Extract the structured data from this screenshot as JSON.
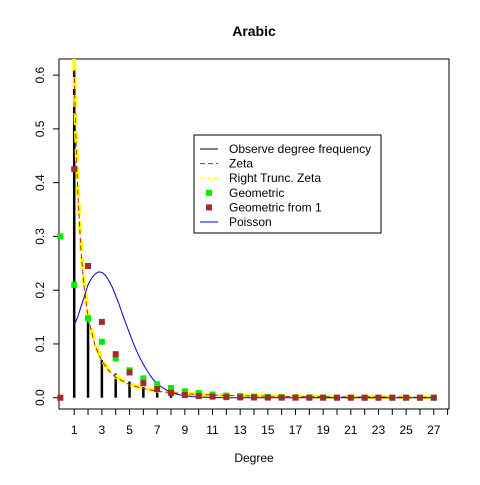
{
  "chart_data": {
    "type": "line",
    "title": "Arabic",
    "xlabel": "Degree",
    "ylabel": "",
    "xlim": [
      -0.1,
      28.1
    ],
    "ylim": [
      -0.021,
      0.63
    ],
    "x_ticks": [
      1,
      2,
      3,
      4,
      5,
      6,
      7,
      8,
      9,
      10,
      11,
      12,
      13,
      14,
      15,
      16,
      17,
      18,
      19,
      20,
      21,
      22,
      23,
      24,
      25,
      26,
      27,
      28
    ],
    "x_tick_labels": [
      "1",
      "",
      "3",
      "",
      "5",
      "",
      "7",
      "",
      "9",
      "",
      "11",
      "",
      "13",
      "",
      "15",
      "",
      "17",
      "",
      "19",
      "",
      "21",
      "",
      "23",
      "",
      "25",
      "",
      "27",
      ""
    ],
    "y_ticks": [
      0.0,
      0.1,
      0.2,
      0.3,
      0.4,
      0.5,
      0.6
    ],
    "y_tick_labels": [
      "0.0",
      "0.1",
      "0.2",
      "0.3",
      "0.4",
      "0.5",
      "0.6"
    ],
    "legend_position": "top-right",
    "series": [
      {
        "name": "Observe degree frequency",
        "style": "spikes",
        "color": "#000000",
        "x": [
          1,
          2,
          3,
          4,
          5,
          6,
          7,
          8,
          9,
          10,
          11,
          12,
          13,
          14,
          15,
          16,
          17,
          18,
          19,
          20,
          21,
          22,
          23,
          24,
          25,
          26,
          27
        ],
        "values": [
          0.61,
          0.15,
          0.07,
          0.045,
          0.03,
          0.02,
          0.015,
          0.011,
          0.008,
          0.006,
          0.005,
          0.004,
          0.003,
          0.002,
          0.002,
          0.0015,
          0.001,
          0.001,
          0.001,
          0.001,
          0.001,
          0.001,
          0.001,
          0.001,
          0.001,
          0.001,
          0.001
        ]
      },
      {
        "name": "Zeta",
        "style": "dashed",
        "color": "#b22222",
        "x": [
          1,
          1.1,
          1.2,
          1.3,
          1.5,
          1.7,
          2,
          2.5,
          3,
          3.5,
          4,
          5,
          6,
          7,
          8,
          9,
          10,
          12,
          14,
          17,
          20,
          24,
          27
        ],
        "values": [
          0.61,
          0.5,
          0.42,
          0.36,
          0.27,
          0.21,
          0.15,
          0.097,
          0.068,
          0.05,
          0.038,
          0.024,
          0.017,
          0.012,
          0.0094,
          0.0075,
          0.006,
          0.0042,
          0.0031,
          0.0021,
          0.0015,
          0.0011,
          0.0008
        ]
      },
      {
        "name": "Right Trunc. Zeta",
        "style": "dashed",
        "color": "#ffff00",
        "x": [
          1,
          1.1,
          1.2,
          1.3,
          1.5,
          1.7,
          2,
          2.5,
          3,
          3.5,
          4,
          5,
          6,
          7,
          8,
          9,
          10,
          12,
          14,
          17,
          20,
          24,
          27
        ],
        "values": [
          0.63,
          0.52,
          0.44,
          0.37,
          0.28,
          0.22,
          0.155,
          0.1,
          0.07,
          0.052,
          0.039,
          0.025,
          0.017,
          0.013,
          0.0097,
          0.0077,
          0.0062,
          0.0043,
          0.0032,
          0.0022,
          0.0016,
          0.0011,
          0.0009
        ]
      },
      {
        "name": "Geometric",
        "style": "points",
        "color": "#00ee00",
        "x": [
          0,
          1,
          2,
          3,
          4,
          5,
          6,
          7,
          8,
          9,
          10,
          11,
          12,
          13,
          14,
          15,
          16,
          17,
          18,
          19,
          20,
          21,
          22,
          23,
          24,
          25,
          26,
          27
        ],
        "values": [
          0.3,
          0.21,
          0.148,
          0.104,
          0.073,
          0.051,
          0.036,
          0.025,
          0.018,
          0.012,
          0.009,
          0.006,
          0.004,
          0.003,
          0.002,
          0.0015,
          0.001,
          0.0007,
          0.0005,
          0.0003,
          0.0002,
          0.0002,
          0.0001,
          0.0001,
          0.0001,
          0.0,
          0.0,
          0.0
        ]
      },
      {
        "name": "Geometric from 1",
        "style": "points",
        "color": "#a52a2a",
        "x": [
          0,
          1,
          2,
          3,
          4,
          5,
          6,
          7,
          8,
          9,
          10,
          11,
          12,
          13,
          14,
          15,
          16,
          17,
          18,
          19,
          20,
          21,
          22,
          23,
          24,
          25,
          26,
          27
        ],
        "values": [
          0.0,
          0.425,
          0.245,
          0.141,
          0.081,
          0.047,
          0.027,
          0.016,
          0.009,
          0.005,
          0.003,
          0.002,
          0.001,
          0.0006,
          0.0004,
          0.0002,
          0.0001,
          0.0001,
          0.0,
          0.0,
          0.0,
          0.0,
          0.0,
          0.0,
          0.0,
          0.0,
          0.0,
          0.0
        ]
      },
      {
        "name": "Poisson",
        "style": "solid",
        "color": "#0000cd",
        "x": [
          1,
          1.25,
          1.5,
          1.75,
          2,
          2.25,
          2.5,
          2.75,
          3,
          3.25,
          3.5,
          3.75,
          4,
          4.25,
          4.5,
          4.75,
          5,
          5.25,
          5.5,
          5.75,
          6,
          6.25,
          6.5,
          6.75,
          7,
          7.25,
          7.5,
          7.75,
          8,
          8.5,
          9,
          9.5,
          10,
          10.5,
          11,
          12,
          13,
          14,
          15,
          17,
          20,
          24,
          27
        ],
        "values": [
          0.135,
          0.15,
          0.17,
          0.19,
          0.21,
          0.222,
          0.23,
          0.234,
          0.233,
          0.228,
          0.218,
          0.206,
          0.19,
          0.173,
          0.155,
          0.137,
          0.12,
          0.103,
          0.088,
          0.074,
          0.062,
          0.051,
          0.041,
          0.033,
          0.027,
          0.021,
          0.017,
          0.013,
          0.01,
          0.006,
          0.0037,
          0.0022,
          0.0013,
          0.0008,
          0.0004,
          0.0001,
          0.0,
          0.0,
          0.0,
          0.0,
          0.0,
          0.0,
          0.0
        ]
      }
    ]
  }
}
